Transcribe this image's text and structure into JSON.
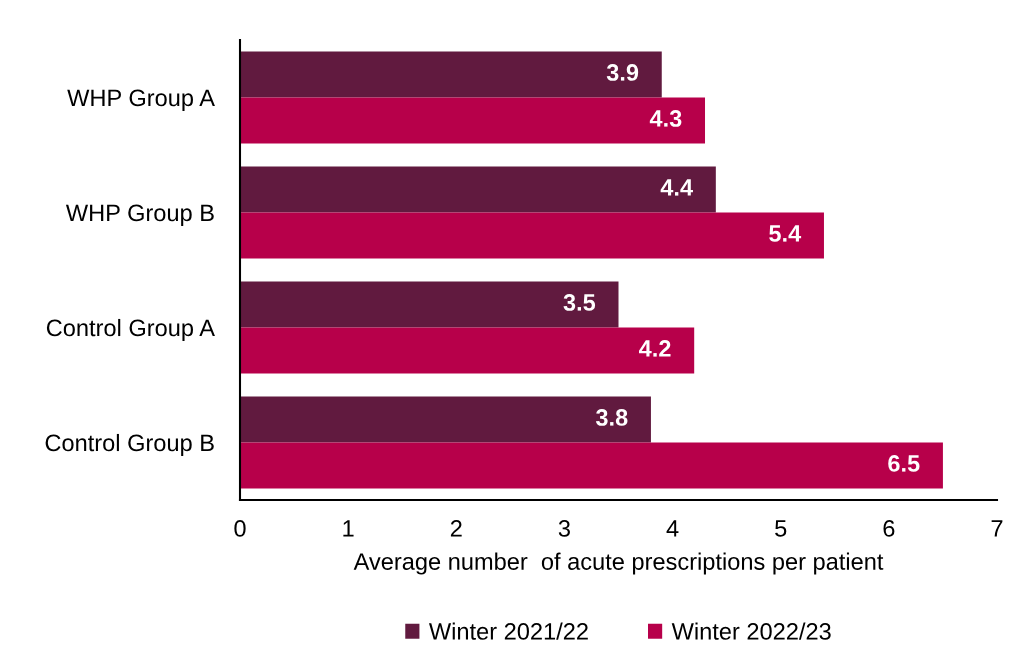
{
  "chart_data": {
    "type": "bar",
    "orientation": "horizontal",
    "categories": [
      "WHP Group A",
      "WHP Group B",
      "Control Group A",
      "Control Group B"
    ],
    "series": [
      {
        "name": "Winter 2021/22",
        "color": "#611a3f",
        "values": [
          3.9,
          4.4,
          3.5,
          3.8
        ]
      },
      {
        "name": "Winter 2022/23",
        "color": "#b7004a",
        "values": [
          4.3,
          5.4,
          4.2,
          6.5
        ]
      }
    ],
    "xlabel": "Average number  of acute prescriptions per patient",
    "xlim": [
      0,
      7
    ],
    "xticks": [
      0,
      1,
      2,
      3,
      4,
      5,
      6,
      7
    ],
    "data_labels": true,
    "legend": "bottom",
    "grid": false
  }
}
